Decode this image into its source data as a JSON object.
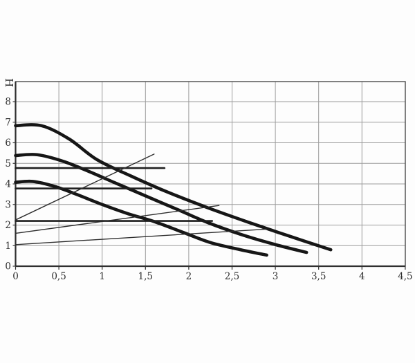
{
  "chart_data": {
    "type": "line",
    "title": "",
    "xlabel": "",
    "ylabel": "H",
    "xlim": [
      0,
      4.5
    ],
    "ylim": [
      0,
      8
    ],
    "y_headroom_top": 8.97,
    "grid": true,
    "legend": "none",
    "x_ticks": {
      "labels": [
        "0",
        "0,5",
        "1",
        "1,5",
        "2",
        "2,5",
        "3",
        "3,5",
        "4",
        "4,5"
      ],
      "values": [
        0,
        0.5,
        1,
        1.5,
        2,
        2.5,
        3,
        3.5,
        4,
        4.5
      ]
    },
    "y_ticks": {
      "labels": [
        "0",
        "1",
        "2",
        "3",
        "4",
        "5",
        "6",
        "7",
        "8"
      ],
      "values": [
        0,
        1,
        2,
        3,
        4,
        5,
        6,
        7,
        8
      ]
    },
    "colors": {
      "curve": "#161616",
      "segment_line": "#1f1f1f",
      "thin_line": "#2e2e2e",
      "grid": "#9b9b9b",
      "border": "#4a4a4a",
      "axis": "#2f2f2f",
      "label": "#2e2e2e"
    },
    "series": [
      {
        "name": "head-curve-speed-3",
        "style": "thick",
        "smooth": true,
        "points": [
          [
            0,
            6.83
          ],
          [
            0.3,
            6.83
          ],
          [
            0.62,
            6.18
          ],
          [
            0.94,
            5.18
          ],
          [
            1.34,
            4.37
          ],
          [
            1.74,
            3.63
          ],
          [
            2.22,
            2.84
          ],
          [
            2.7,
            2.12
          ],
          [
            3.17,
            1.45
          ],
          [
            3.64,
            0.8
          ]
        ]
      },
      {
        "name": "head-curve-speed-2",
        "style": "thick",
        "smooth": true,
        "points": [
          [
            0,
            5.38
          ],
          [
            0.25,
            5.42
          ],
          [
            0.55,
            5.1
          ],
          [
            0.85,
            4.6
          ],
          [
            1.15,
            4.05
          ],
          [
            1.5,
            3.42
          ],
          [
            1.9,
            2.7
          ],
          [
            2.22,
            2.12
          ],
          [
            2.6,
            1.55
          ],
          [
            3.0,
            1.05
          ],
          [
            3.36,
            0.67
          ]
        ]
      },
      {
        "name": "head-curve-speed-1",
        "style": "thick",
        "smooth": true,
        "points": [
          [
            0,
            4.08
          ],
          [
            0.2,
            4.12
          ],
          [
            0.45,
            3.88
          ],
          [
            0.7,
            3.5
          ],
          [
            1.0,
            3.0
          ],
          [
            1.3,
            2.55
          ],
          [
            1.6,
            2.17
          ],
          [
            1.95,
            1.62
          ],
          [
            2.25,
            1.15
          ],
          [
            2.6,
            0.8
          ],
          [
            2.9,
            0.54
          ]
        ]
      },
      {
        "name": "horizontal-line-4.8",
        "style": "medium",
        "smooth": false,
        "points": [
          [
            0,
            4.77
          ],
          [
            1.72,
            4.77
          ]
        ]
      },
      {
        "name": "horizontal-line-3.8",
        "style": "medium",
        "smooth": false,
        "points": [
          [
            0,
            3.78
          ],
          [
            1.57,
            3.78
          ]
        ]
      },
      {
        "name": "horizontal-line-2.2",
        "style": "medium",
        "smooth": false,
        "points": [
          [
            0,
            2.2
          ],
          [
            2.27,
            2.2
          ]
        ]
      },
      {
        "name": "rising-line-1",
        "style": "thin",
        "smooth": false,
        "points": [
          [
            0,
            2.25
          ],
          [
            1.6,
            5.45
          ]
        ]
      },
      {
        "name": "rising-line-2",
        "style": "thin",
        "smooth": false,
        "points": [
          [
            0,
            1.6
          ],
          [
            2.35,
            2.95
          ]
        ]
      },
      {
        "name": "rising-line-3",
        "style": "thin",
        "smooth": false,
        "points": [
          [
            0,
            1.05
          ],
          [
            2.9,
            1.8
          ]
        ]
      }
    ]
  }
}
